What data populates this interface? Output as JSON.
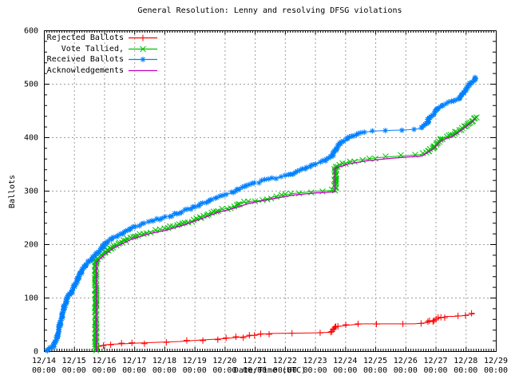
{
  "title": "General Resolution: Lenny and resolving DFSG violations",
  "chart_data": {
    "type": "line",
    "title": "General Resolution: Lenny and resolving DFSG violations",
    "xlabel": "Date/Time (UTC)",
    "ylabel": "Ballots",
    "grid": true,
    "legend_position": "top-left",
    "x_axis": {
      "range_days": [
        0,
        15
      ],
      "tick_labels": [
        "12/14",
        "12/15",
        "12/16",
        "12/17",
        "12/18",
        "12/19",
        "12/20",
        "12/21",
        "12/22",
        "12/23",
        "12/24",
        "12/25",
        "12/26",
        "12/27",
        "12/28",
        "12/29"
      ],
      "tick_time_label": "00:00",
      "minor_ticks_per_day": 12
    },
    "y_axis": {
      "min": 0,
      "max": 600,
      "ticks": [
        0,
        100,
        200,
        300,
        400,
        500,
        600
      ],
      "minor_step": 20
    },
    "grid_color": "#9e9e9e",
    "border_color": "#000000",
    "series": [
      {
        "name": "Rejected Ballots",
        "color": "#ff0000",
        "marker": "plus",
        "points": [
          [
            1.78,
            8
          ],
          [
            1.85,
            10
          ],
          [
            2.05,
            12
          ],
          [
            2.35,
            13
          ],
          [
            2.8,
            14
          ],
          [
            3.1,
            15
          ],
          [
            3.6,
            16
          ],
          [
            4.5,
            18
          ],
          [
            5.0,
            20
          ],
          [
            5.6,
            22
          ],
          [
            5.9,
            23
          ],
          [
            6.5,
            26
          ],
          [
            6.9,
            29
          ],
          [
            7.1,
            31
          ],
          [
            7.35,
            32
          ],
          [
            7.6,
            33
          ],
          [
            8.9,
            34
          ],
          [
            9.5,
            35
          ],
          [
            9.68,
            46
          ],
          [
            9.9,
            47
          ],
          [
            10.2,
            49
          ],
          [
            10.6,
            51
          ],
          [
            11.5,
            51
          ],
          [
            12.3,
            51
          ],
          [
            12.7,
            53
          ],
          [
            12.85,
            56
          ],
          [
            13.0,
            59
          ],
          [
            13.15,
            62
          ],
          [
            13.35,
            65
          ],
          [
            13.6,
            65
          ],
          [
            13.9,
            66
          ],
          [
            14.1,
            68
          ],
          [
            14.3,
            70
          ]
        ]
      },
      {
        "name": "Vote Tallied,",
        "color": "#00c000",
        "marker": "x",
        "points": [
          [
            1.72,
            0
          ],
          [
            1.72,
            170
          ],
          [
            1.85,
            176
          ],
          [
            2.0,
            183
          ],
          [
            2.15,
            190
          ],
          [
            2.35,
            197
          ],
          [
            2.6,
            205
          ],
          [
            2.9,
            212
          ],
          [
            3.15,
            217
          ],
          [
            3.45,
            222
          ],
          [
            3.75,
            226
          ],
          [
            4.05,
            229
          ],
          [
            4.35,
            234
          ],
          [
            4.65,
            239
          ],
          [
            4.95,
            244
          ],
          [
            5.2,
            250
          ],
          [
            5.5,
            257
          ],
          [
            5.75,
            262
          ],
          [
            6.0,
            266
          ],
          [
            6.3,
            270
          ],
          [
            6.55,
            277
          ],
          [
            6.85,
            280
          ],
          [
            7.2,
            282
          ],
          [
            7.6,
            288
          ],
          [
            7.95,
            292
          ],
          [
            8.3,
            295
          ],
          [
            8.7,
            297
          ],
          [
            9.05,
            299
          ],
          [
            9.4,
            300
          ],
          [
            9.67,
            301
          ],
          [
            9.67,
            345
          ],
          [
            9.85,
            349
          ],
          [
            10.1,
            353
          ],
          [
            10.4,
            357
          ],
          [
            10.7,
            359
          ],
          [
            11.1,
            362
          ],
          [
            11.6,
            364
          ],
          [
            12.1,
            366
          ],
          [
            12.55,
            368
          ],
          [
            12.75,
            372
          ],
          [
            12.9,
            380
          ],
          [
            13.05,
            390
          ],
          [
            13.2,
            397
          ],
          [
            13.4,
            401
          ],
          [
            13.6,
            406
          ],
          [
            13.75,
            412
          ],
          [
            13.9,
            418
          ],
          [
            14.05,
            424
          ],
          [
            14.2,
            431
          ],
          [
            14.35,
            438
          ]
        ]
      },
      {
        "name": "Received Ballots",
        "color": "#0080ff",
        "marker": "asterisk",
        "points": [
          [
            0.05,
            0
          ],
          [
            0.15,
            3
          ],
          [
            0.3,
            8
          ],
          [
            0.4,
            20
          ],
          [
            0.5,
            40
          ],
          [
            0.6,
            65
          ],
          [
            0.7,
            88
          ],
          [
            0.8,
            100
          ],
          [
            0.9,
            110
          ],
          [
            1.0,
            120
          ],
          [
            1.1,
            133
          ],
          [
            1.25,
            150
          ],
          [
            1.4,
            162
          ],
          [
            1.55,
            170
          ],
          [
            1.7,
            178
          ],
          [
            1.85,
            188
          ],
          [
            2.0,
            197
          ],
          [
            2.1,
            205
          ],
          [
            2.3,
            213
          ],
          [
            2.5,
            218
          ],
          [
            2.8,
            227
          ],
          [
            3.0,
            232
          ],
          [
            3.3,
            238
          ],
          [
            3.7,
            245
          ],
          [
            4.0,
            250
          ],
          [
            4.3,
            255
          ],
          [
            4.6,
            262
          ],
          [
            4.9,
            268
          ],
          [
            5.1,
            272
          ],
          [
            5.4,
            280
          ],
          [
            5.7,
            288
          ],
          [
            5.95,
            293
          ],
          [
            6.2,
            295
          ],
          [
            6.45,
            303
          ],
          [
            6.7,
            308
          ],
          [
            6.95,
            313
          ],
          [
            7.2,
            317
          ],
          [
            7.5,
            322
          ],
          [
            7.8,
            325
          ],
          [
            8.1,
            328
          ],
          [
            8.4,
            335
          ],
          [
            8.7,
            342
          ],
          [
            9.0,
            350
          ],
          [
            9.3,
            356
          ],
          [
            9.5,
            362
          ],
          [
            9.65,
            372
          ],
          [
            9.8,
            388
          ],
          [
            10.0,
            395
          ],
          [
            10.2,
            400
          ],
          [
            10.45,
            407
          ],
          [
            10.7,
            410
          ],
          [
            11.1,
            412
          ],
          [
            11.6,
            413
          ],
          [
            12.1,
            414
          ],
          [
            12.5,
            416
          ],
          [
            12.65,
            422
          ],
          [
            12.8,
            435
          ],
          [
            13.0,
            448
          ],
          [
            13.15,
            458
          ],
          [
            13.35,
            464
          ],
          [
            13.6,
            468
          ],
          [
            13.8,
            473
          ],
          [
            13.95,
            485
          ],
          [
            14.1,
            497
          ],
          [
            14.25,
            505
          ],
          [
            14.35,
            512
          ]
        ]
      },
      {
        "name": "Acknowledgements",
        "color": "#c000c0",
        "marker": "none",
        "points": [
          [
            1.74,
            0
          ],
          [
            1.74,
            166
          ],
          [
            2.0,
            180
          ],
          [
            2.35,
            194
          ],
          [
            2.9,
            209
          ],
          [
            3.45,
            219
          ],
          [
            4.05,
            226
          ],
          [
            4.65,
            236
          ],
          [
            5.2,
            247
          ],
          [
            5.75,
            259
          ],
          [
            6.3,
            267
          ],
          [
            6.85,
            277
          ],
          [
            7.6,
            285
          ],
          [
            8.3,
            292
          ],
          [
            9.05,
            296
          ],
          [
            9.66,
            298
          ],
          [
            9.66,
            342
          ],
          [
            10.1,
            350
          ],
          [
            10.7,
            356
          ],
          [
            11.6,
            361
          ],
          [
            12.55,
            365
          ],
          [
            12.9,
            377
          ],
          [
            13.2,
            394
          ],
          [
            13.6,
            403
          ],
          [
            13.9,
            415
          ],
          [
            14.2,
            428
          ],
          [
            14.33,
            435
          ]
        ]
      }
    ]
  }
}
